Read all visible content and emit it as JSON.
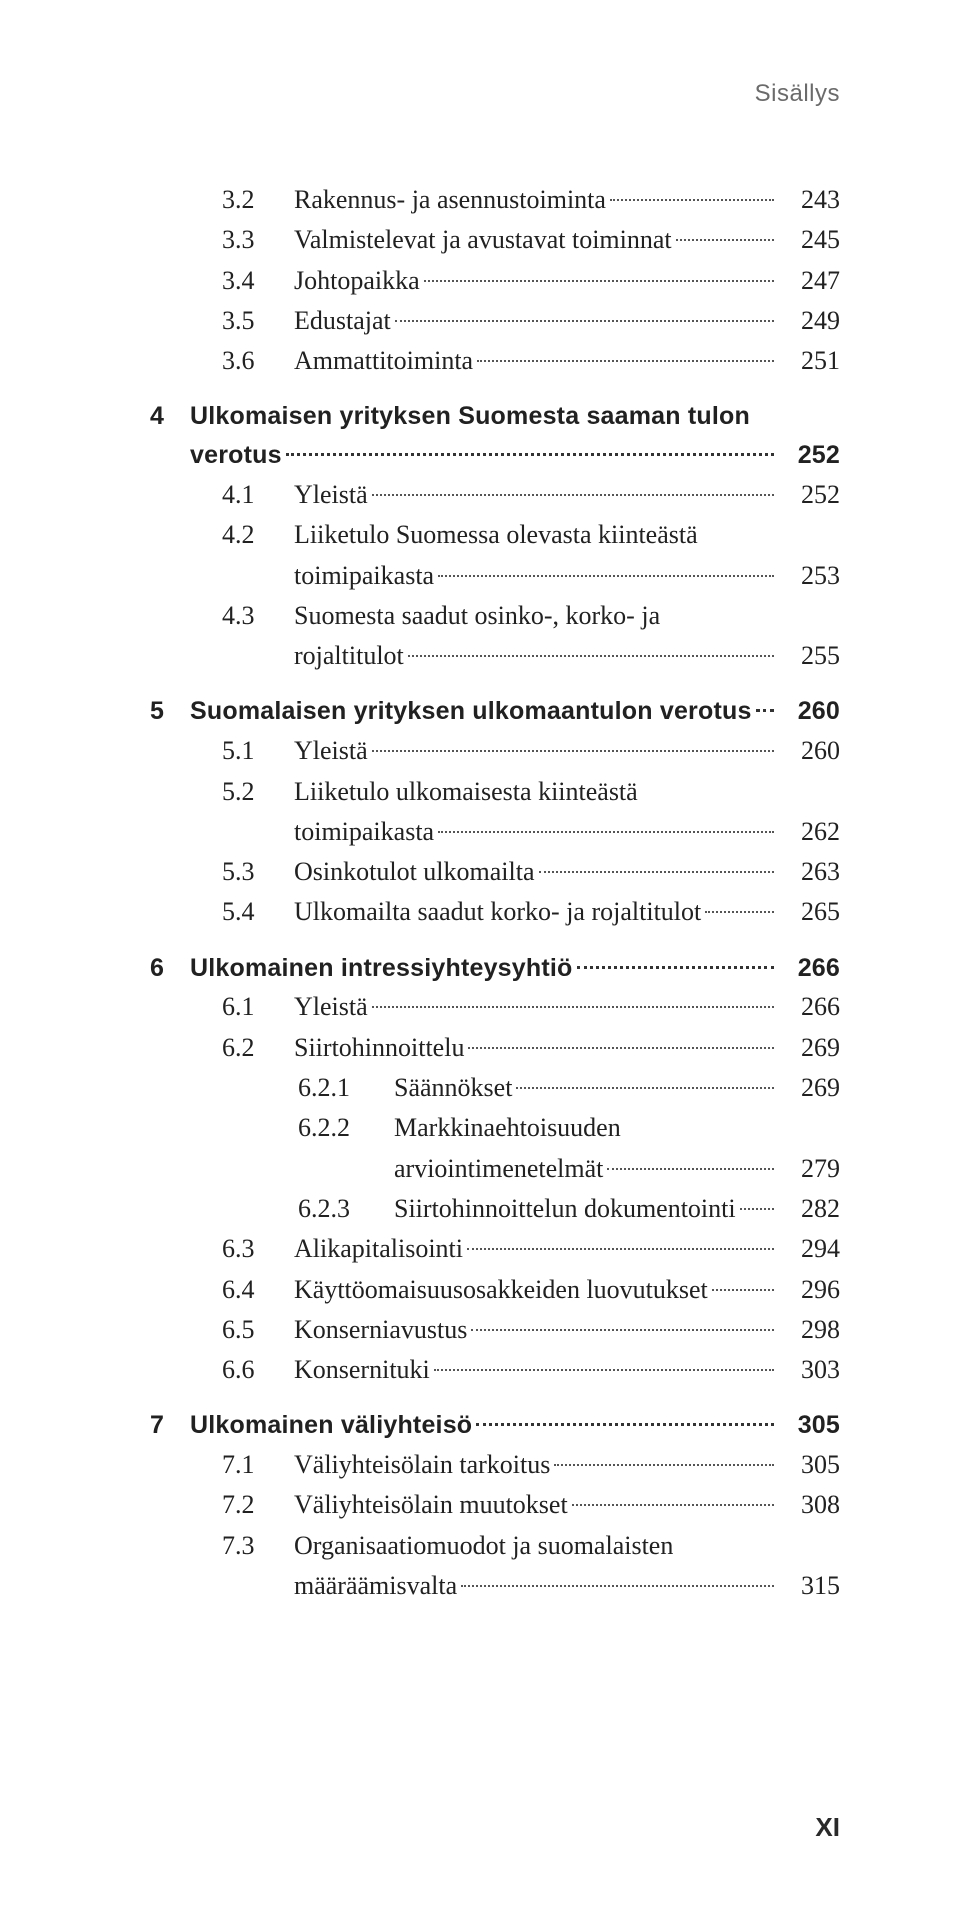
{
  "running_head": "Sisällys",
  "folio": "XI",
  "toc": [
    {
      "kind": "row",
      "level": 1,
      "num": "3.2",
      "title": "Rakennus- ja asennustoiminta",
      "page": "243"
    },
    {
      "kind": "row",
      "level": 1,
      "num": "3.3",
      "title": "Valmistelevat ja avustavat toiminnat",
      "page": "245"
    },
    {
      "kind": "row",
      "level": 1,
      "num": "3.4",
      "title": "Johtopaikka",
      "page": "247"
    },
    {
      "kind": "row",
      "level": 1,
      "num": "3.5",
      "title": "Edustajat",
      "page": "249"
    },
    {
      "kind": "row",
      "level": 1,
      "num": "3.6",
      "title": "Ammattitoiminta",
      "page": "251"
    },
    {
      "kind": "spacer",
      "size": "md"
    },
    {
      "kind": "chapter-2line",
      "num": "4",
      "line1": "Ulkomaisen yrityksen Suomesta saaman tulon",
      "line2": "verotus",
      "page": "252"
    },
    {
      "kind": "row",
      "level": 1,
      "num": "4.1",
      "title": "Yleistä",
      "page": "252"
    },
    {
      "kind": "row-2line",
      "level": 1,
      "num": "4.2",
      "line1": "Liiketulo Suomessa olevasta kiinteästä",
      "line2": "toimipaikasta",
      "page": "253"
    },
    {
      "kind": "row-2line",
      "level": 1,
      "num": "4.3",
      "line1": "Suomesta saadut osinko-, korko- ja",
      "line2": "rojaltitulot",
      "page": "255"
    },
    {
      "kind": "spacer",
      "size": "md"
    },
    {
      "kind": "chapter",
      "num": "5",
      "title": "Suomalaisen yrityksen ulkomaantulon verotus",
      "page": "260"
    },
    {
      "kind": "row",
      "level": 1,
      "num": "5.1",
      "title": "Yleistä",
      "page": "260"
    },
    {
      "kind": "row-2line",
      "level": 1,
      "num": "5.2",
      "line1": "Liiketulo ulkomaisesta kiinteästä",
      "line2": "toimipaikasta",
      "page": "262"
    },
    {
      "kind": "row",
      "level": 1,
      "num": "5.3",
      "title": "Osinkotulot ulkomailta",
      "page": "263"
    },
    {
      "kind": "row",
      "level": 1,
      "num": "5.4",
      "title": "Ulkomailta saadut korko- ja rojaltitulot",
      "page": "265"
    },
    {
      "kind": "spacer",
      "size": "md"
    },
    {
      "kind": "chapter",
      "num": "6",
      "title": "Ulkomainen intressiyhteysyhtiö",
      "page": "266"
    },
    {
      "kind": "row",
      "level": 1,
      "num": "6.1",
      "title": "Yleistä",
      "page": "266"
    },
    {
      "kind": "row",
      "level": 1,
      "num": "6.2",
      "title": "Siirtohinnoittelu",
      "page": "269"
    },
    {
      "kind": "row",
      "level": 2,
      "num": "6.2.1",
      "title": "Säännökset",
      "page": "269"
    },
    {
      "kind": "row-2line",
      "level": 2,
      "num": "6.2.2",
      "line1": "Markkinaehtoisuuden",
      "line2": "arviointimenetelmät",
      "page": "279"
    },
    {
      "kind": "row",
      "level": 2,
      "num": "6.2.3",
      "title": "Siirtohinnoittelun dokumentointi",
      "page": "282"
    },
    {
      "kind": "row",
      "level": 1,
      "num": "6.3",
      "title": "Alikapitalisointi",
      "page": "294"
    },
    {
      "kind": "row",
      "level": 1,
      "num": "6.4",
      "title": "Käyttöomaisuusosakkeiden luovutukset",
      "page": "296"
    },
    {
      "kind": "row",
      "level": 1,
      "num": "6.5",
      "title": "Konserniavustus",
      "page": "298"
    },
    {
      "kind": "row",
      "level": 1,
      "num": "6.6",
      "title": "Konsernituki",
      "page": "303"
    },
    {
      "kind": "spacer",
      "size": "md"
    },
    {
      "kind": "chapter",
      "num": "7",
      "title": "Ulkomainen väliyhteisö",
      "page": "305"
    },
    {
      "kind": "row",
      "level": 1,
      "num": "7.1",
      "title": "Väliyhteisölain tarkoitus",
      "page": "305"
    },
    {
      "kind": "row",
      "level": 1,
      "num": "7.2",
      "title": "Väliyhteisölain muutokset",
      "page": "308"
    },
    {
      "kind": "row-2line",
      "level": 1,
      "num": "7.3",
      "line1": "Organisaatiomuodot ja suomalaisten",
      "line2": "määräämisvalta",
      "page": "315"
    }
  ]
}
